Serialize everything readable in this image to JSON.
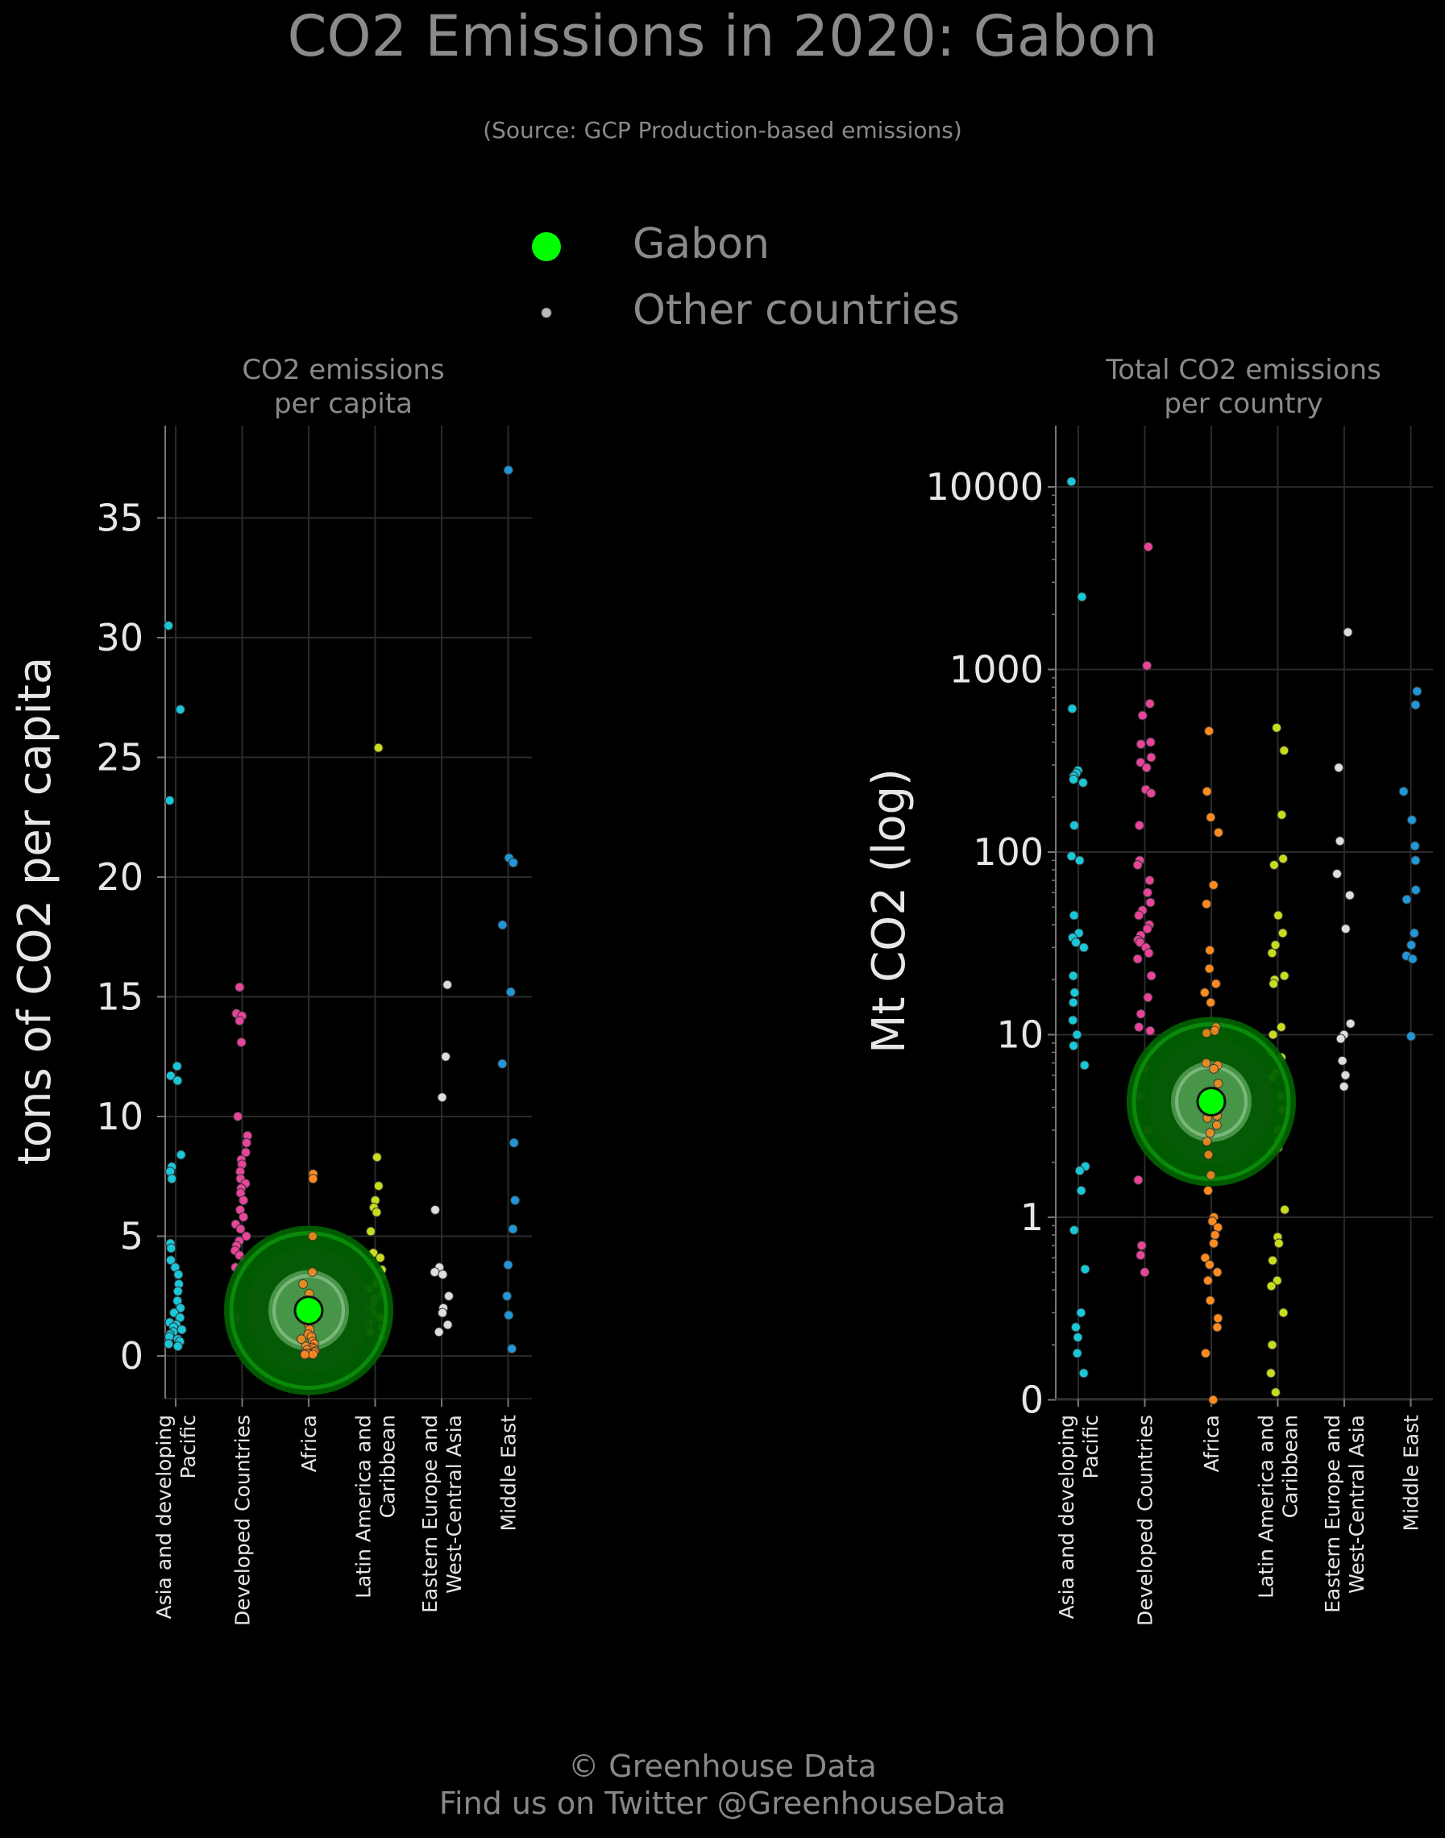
{
  "title": "CO2 Emissions in 2020: Gabon",
  "subtitle": "(Source: GCP Production-based emissions)",
  "legend": [
    {
      "label": "Gabon",
      "color": "#00ff00"
    },
    {
      "label": "Other countries",
      "color": "#bbbbbb"
    }
  ],
  "footer": {
    "line1": "© Greenhouse Data",
    "line2": "Find us on Twitter @GreenhouseData"
  },
  "colors": {
    "Asia and developing Pacific": "#19c8d8",
    "Developed Countries": "#e8449a",
    "Africa": "#ff8a1e",
    "Latin America and Caribbean": "#c8dc1e",
    "Eastern Europe and West-Central Asia": "#dddddd",
    "Middle East": "#2196d8",
    "highlight": "#00ff00"
  },
  "chart_data": [
    {
      "type": "scatter",
      "title": "CO2 emissions per capita",
      "ylabel": "tons of CO2 per capita",
      "ylim": [
        -1.5,
        39
      ],
      "yticks": [
        0,
        5,
        10,
        15,
        20,
        25,
        30,
        35
      ],
      "scale": "linear",
      "categories": [
        "Asia and developing Pacific",
        "Developed Countries",
        "Africa",
        "Latin America and Caribbean",
        "Eastern Europe and West-Central Asia",
        "Middle East"
      ],
      "highlight": {
        "name": "Gabon",
        "category": "Africa",
        "value": 1.9
      },
      "series": [
        {
          "category": "Asia and developing Pacific",
          "values": [
            30.5,
            27.0,
            23.2,
            12.1,
            11.7,
            11.5,
            8.4,
            7.9,
            7.7,
            7.4,
            4.7,
            4.5,
            4.0,
            3.7,
            3.4,
            3.0,
            2.7,
            2.3,
            2.0,
            1.8,
            1.6,
            1.4,
            1.3,
            1.2,
            1.1,
            1.0,
            0.9,
            0.8,
            0.7,
            0.6,
            0.5,
            0.4
          ]
        },
        {
          "category": "Developed Countries",
          "values": [
            15.4,
            14.3,
            14.2,
            14.0,
            13.1,
            10.0,
            9.2,
            8.9,
            8.5,
            8.2,
            8.0,
            7.7,
            7.4,
            7.2,
            7.0,
            6.8,
            6.5,
            6.1,
            5.8,
            5.5,
            5.3,
            5.0,
            4.8,
            4.6,
            4.4,
            4.2,
            4.0,
            3.8,
            3.7,
            1.6
          ]
        },
        {
          "category": "Africa",
          "values": [
            7.6,
            7.4,
            5.0,
            3.5,
            3.0,
            2.6,
            2.3,
            2.0,
            1.6,
            1.3,
            1.1,
            0.9,
            0.8,
            0.7,
            0.6,
            0.5,
            0.4,
            0.35,
            0.3,
            0.25,
            0.2,
            0.15,
            0.1,
            0.1,
            0.08,
            0.06,
            0.05
          ]
        },
        {
          "category": "Latin America and Caribbean",
          "values": [
            25.4,
            8.3,
            7.1,
            6.5,
            6.2,
            6.0,
            5.2,
            4.3,
            4.1,
            3.9,
            3.6,
            3.3,
            3.0,
            2.8,
            2.6,
            2.4,
            2.2,
            2.0,
            1.8,
            1.6,
            1.4,
            1.2,
            1.0,
            0.8
          ]
        },
        {
          "category": "Eastern Europe and West-Central Asia",
          "values": [
            15.5,
            12.5,
            10.8,
            6.1,
            3.7,
            3.5,
            3.4,
            2.5,
            2.0,
            1.8,
            1.3,
            1.0
          ]
        },
        {
          "category": "Middle East",
          "values": [
            37.0,
            20.8,
            20.6,
            18.0,
            15.2,
            12.2,
            8.9,
            6.5,
            5.3,
            3.8,
            2.5,
            1.7,
            0.3
          ]
        }
      ]
    },
    {
      "type": "scatter",
      "title": "Total CO2 emissions per country",
      "ylabel": "Mt CO2 (log)",
      "scale": "log",
      "yticks": [
        0,
        1,
        10,
        100,
        1000,
        10000
      ],
      "ylim": [
        0.0,
        20000
      ],
      "categories": [
        "Asia and developing Pacific",
        "Developed Countries",
        "Africa",
        "Latin America and Caribbean",
        "Eastern Europe and West-Central Asia",
        "Middle East"
      ],
      "highlight": {
        "name": "Gabon",
        "category": "Africa",
        "value": 4.3
      },
      "series": [
        {
          "category": "Asia and developing Pacific",
          "values": [
            10700,
            2500,
            610,
            280,
            270,
            260,
            250,
            240,
            140,
            95,
            90,
            45,
            36,
            34,
            32,
            30,
            21,
            17,
            15,
            12,
            10,
            8.7,
            6.8,
            1.9,
            1.8,
            1.4,
            0.85,
            0.52,
            0.3,
            0.25,
            0.22,
            0.18,
            0.14
          ]
        },
        {
          "category": "Developed Countries",
          "values": [
            4700,
            1050,
            650,
            560,
            400,
            390,
            330,
            310,
            290,
            220,
            210,
            140,
            90,
            85,
            70,
            60,
            53,
            48,
            45,
            40,
            38,
            35,
            33,
            32,
            30,
            28,
            26,
            21,
            16,
            13,
            11,
            10.5,
            8.2,
            6.5,
            4.6,
            3.0,
            1.6,
            0.7,
            0.62,
            0.5
          ]
        },
        {
          "category": "Africa",
          "values": [
            460,
            215,
            155,
            128,
            66,
            52,
            29,
            23,
            19,
            17,
            15,
            11,
            10.5,
            10.2,
            7.0,
            6.8,
            6.5,
            5.4,
            4.3,
            3.6,
            3.5,
            3.2,
            2.9,
            2.6,
            2.2,
            1.7,
            1.4,
            1.0,
            0.95,
            0.88,
            0.8,
            0.72,
            0.6,
            0.55,
            0.5,
            0.45,
            0.35,
            0.28,
            0.25,
            0.18,
            0.1
          ]
        },
        {
          "category": "Latin America and Caribbean",
          "values": [
            480,
            360,
            160,
            92,
            85,
            45,
            36,
            31,
            28,
            21,
            20,
            19,
            11,
            10,
            8.0,
            7.5,
            6.2,
            5.8,
            4.6,
            3.9,
            3.0,
            2.8,
            2.6,
            2.4,
            2.3,
            1.1,
            0.78,
            0.72,
            0.58,
            0.45,
            0.42,
            0.3,
            0.2,
            0.14,
            0.11
          ]
        },
        {
          "category": "Eastern Europe and West-Central Asia",
          "values": [
            1600,
            290,
            115,
            76,
            58,
            38,
            11.5,
            10,
            9.5,
            7.2,
            6.0,
            5.2
          ]
        },
        {
          "category": "Middle East",
          "values": [
            760,
            640,
            215,
            150,
            108,
            90,
            62,
            55,
            36,
            31,
            27,
            26,
            9.8
          ]
        }
      ]
    }
  ]
}
